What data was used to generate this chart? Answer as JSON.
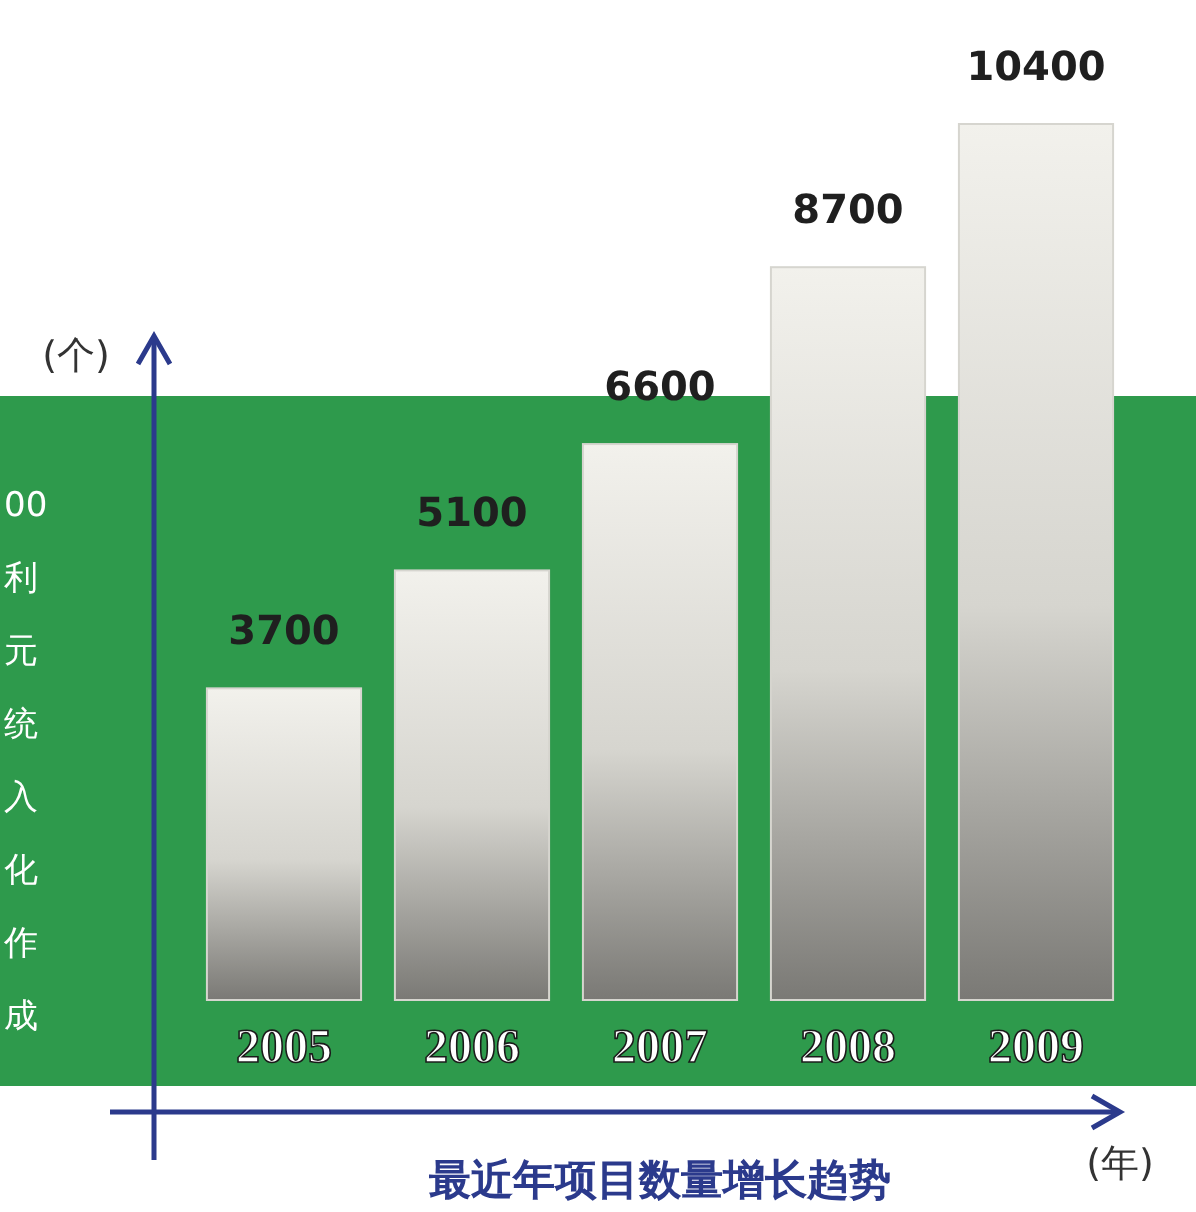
{
  "chart_data": {
    "type": "bar",
    "title": "最近年项目数量增长趋势",
    "xlabel": "(年)",
    "ylabel": "(个)",
    "categories": [
      "2005",
      "2006",
      "2007",
      "2008",
      "2009"
    ],
    "values": [
      3700,
      5100,
      6600,
      8700,
      10400
    ],
    "color": "#d6d5cf",
    "data_labels": true,
    "annotations": [
      "00",
      "利",
      "元",
      "统",
      "入",
      "化",
      "作",
      "成"
    ]
  }
}
